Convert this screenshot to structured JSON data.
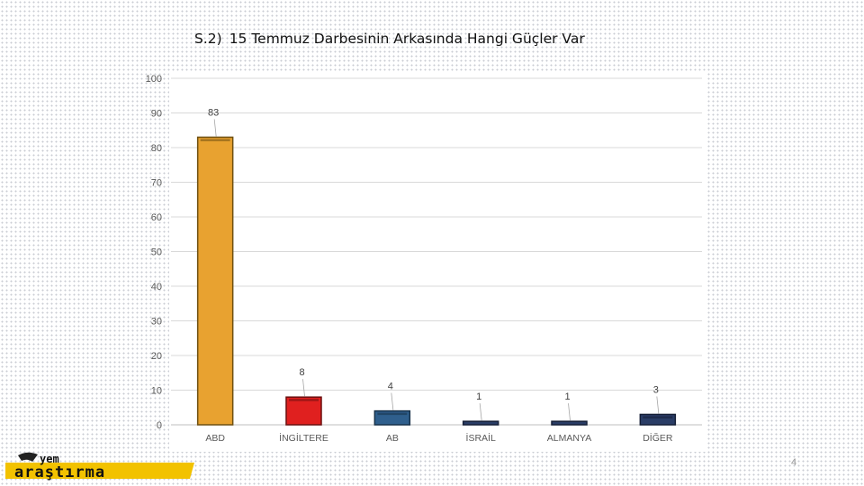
{
  "slide": {
    "title_number": "S.2)",
    "title_text": "15 Temmuz Darbesinin Arkasında Hangi Güçler Var",
    "page_number": "4",
    "logo_text_top": "yem",
    "logo_text_bottom": "araştırma"
  },
  "chart_data": {
    "type": "bar",
    "title": "",
    "xlabel": "",
    "ylabel": "",
    "categories": [
      "ABD",
      "İNGİLTERE",
      "AB",
      "İSRAİL",
      "ALMANYA",
      "DİĞER"
    ],
    "values": [
      83,
      8,
      4,
      1,
      1,
      3
    ],
    "ylim": [
      0,
      100
    ],
    "yticks": [
      0,
      10,
      20,
      30,
      40,
      50,
      60,
      70,
      80,
      90,
      100
    ],
    "grid": true,
    "legend": "none",
    "colors": [
      "#e8a230",
      "#e0201f",
      "#2f5f8d",
      "#2a3d66",
      "#2a3d66",
      "#2a3d66"
    ],
    "border_colors": [
      "#6e4f10",
      "#6a0f0f",
      "#173149",
      "#141e36",
      "#141e36",
      "#141e36"
    ]
  }
}
